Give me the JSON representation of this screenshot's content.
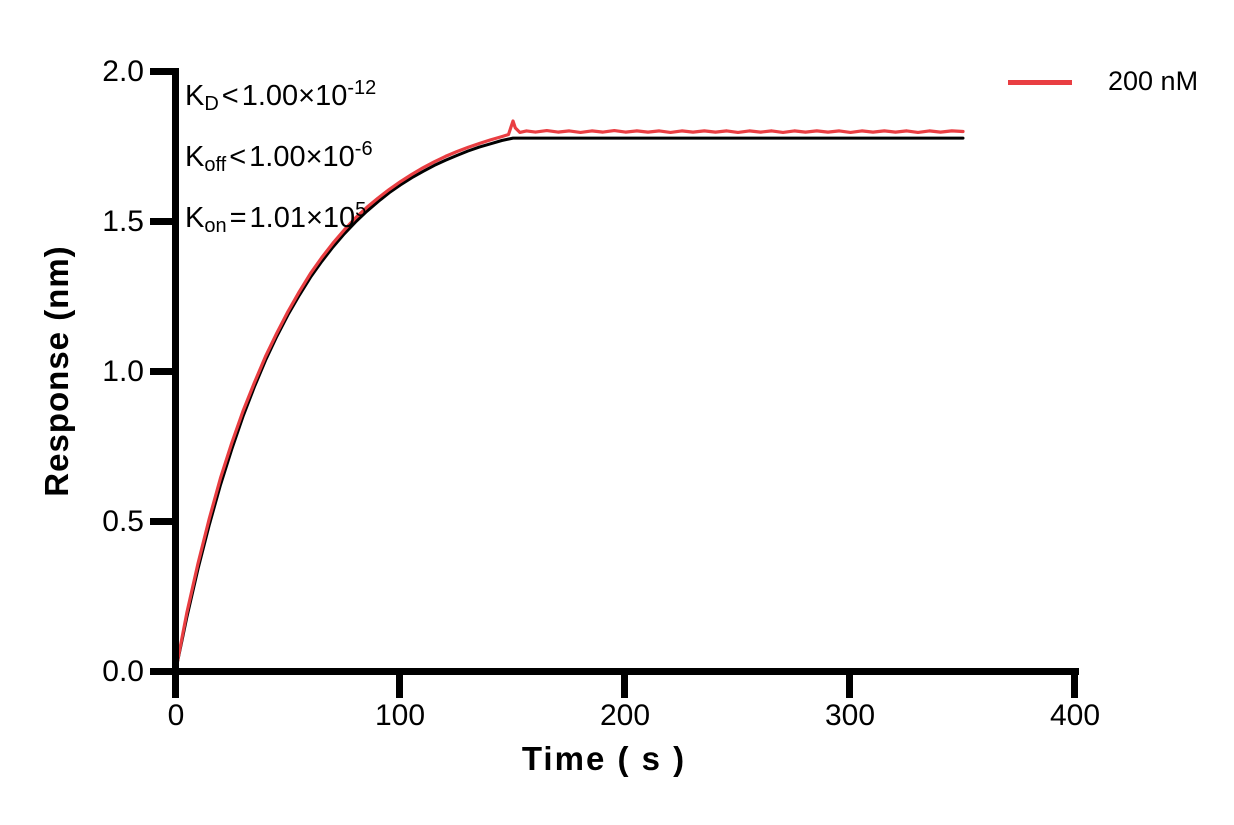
{
  "figure": {
    "background": "#FFFFFF"
  },
  "chart_data": {
    "type": "line",
    "title": "",
    "xlabel": "Time ( s )",
    "ylabel": "Response (nm)",
    "xlim": [
      0,
      400
    ],
    "ylim": [
      0.0,
      2.0
    ],
    "xticks": [
      0,
      100,
      200,
      300,
      400
    ],
    "yticks": [
      0.0,
      0.5,
      1.0,
      1.5,
      2.0
    ],
    "xtick_labels": [
      "0",
      "100",
      "200",
      "300",
      "400"
    ],
    "ytick_labels": [
      "0.0",
      "0.5",
      "1.0",
      "1.5",
      "2.0"
    ],
    "grid": false,
    "axis_color": "#000000",
    "legend_position": "top-right",
    "legend": [
      {
        "label": "200 nM",
        "color": "#E93E42"
      }
    ],
    "annotations": [
      {
        "base": "K",
        "sub": "D",
        "op": "<",
        "mantissa": "1.00×10",
        "sup": "-12"
      },
      {
        "base": "K",
        "sub": "off",
        "op": "<",
        "mantissa": "1.00×10",
        "sup": "-6"
      },
      {
        "base": "K",
        "sub": "on",
        "op": "=",
        "mantissa": "1.01×10",
        "sup": "5"
      }
    ],
    "series": [
      {
        "name": "fit",
        "color": "#000000",
        "stroke_width": 3,
        "in_legend": false,
        "points": [
          [
            0,
            0
          ],
          [
            5,
            0.18
          ],
          [
            10,
            0.342
          ],
          [
            15,
            0.489
          ],
          [
            20,
            0.622
          ],
          [
            25,
            0.741
          ],
          [
            30,
            0.85
          ],
          [
            35,
            0.948
          ],
          [
            40,
            1.037
          ],
          [
            45,
            1.117
          ],
          [
            50,
            1.189
          ],
          [
            55,
            1.254
          ],
          [
            60,
            1.314
          ],
          [
            65,
            1.367
          ],
          [
            70,
            1.415
          ],
          [
            75,
            1.459
          ],
          [
            80,
            1.498
          ],
          [
            85,
            1.534
          ],
          [
            90,
            1.566
          ],
          [
            95,
            1.596
          ],
          [
            100,
            1.622
          ],
          [
            105,
            1.646
          ],
          [
            110,
            1.667
          ],
          [
            115,
            1.687
          ],
          [
            120,
            1.704
          ],
          [
            125,
            1.72
          ],
          [
            130,
            1.735
          ],
          [
            135,
            1.748
          ],
          [
            140,
            1.759
          ],
          [
            145,
            1.77
          ],
          [
            150,
            1.778
          ],
          [
            350,
            1.778
          ]
        ]
      },
      {
        "name": "200 nM",
        "color": "#E93E42",
        "stroke_width": 3.2,
        "in_legend": true,
        "points": [
          [
            0,
            0
          ],
          [
            5,
            0.195
          ],
          [
            10,
            0.36
          ],
          [
            15,
            0.51
          ],
          [
            20,
            0.645
          ],
          [
            25,
            0.762
          ],
          [
            30,
            0.868
          ],
          [
            35,
            0.962
          ],
          [
            40,
            1.05
          ],
          [
            45,
            1.128
          ],
          [
            50,
            1.2
          ],
          [
            55,
            1.266
          ],
          [
            60,
            1.327
          ],
          [
            65,
            1.38
          ],
          [
            70,
            1.428
          ],
          [
            75,
            1.472
          ],
          [
            80,
            1.512
          ],
          [
            85,
            1.547
          ],
          [
            90,
            1.578
          ],
          [
            95,
            1.607
          ],
          [
            100,
            1.633
          ],
          [
            105,
            1.657
          ],
          [
            110,
            1.679
          ],
          [
            115,
            1.699
          ],
          [
            120,
            1.717
          ],
          [
            125,
            1.733
          ],
          [
            130,
            1.747
          ],
          [
            135,
            1.76
          ],
          [
            140,
            1.772
          ],
          [
            145,
            1.783
          ],
          [
            148,
            1.79
          ],
          [
            150,
            1.835
          ],
          [
            151,
            1.812
          ],
          [
            153,
            1.797
          ],
          [
            156,
            1.802
          ],
          [
            160,
            1.798
          ],
          [
            165,
            1.803
          ],
          [
            170,
            1.798
          ],
          [
            175,
            1.802
          ],
          [
            180,
            1.797
          ],
          [
            185,
            1.802
          ],
          [
            190,
            1.798
          ],
          [
            195,
            1.803
          ],
          [
            200,
            1.798
          ],
          [
            205,
            1.802
          ],
          [
            210,
            1.798
          ],
          [
            215,
            1.802
          ],
          [
            220,
            1.797
          ],
          [
            225,
            1.802
          ],
          [
            230,
            1.798
          ],
          [
            235,
            1.802
          ],
          [
            240,
            1.798
          ],
          [
            245,
            1.802
          ],
          [
            250,
            1.797
          ],
          [
            255,
            1.802
          ],
          [
            260,
            1.798
          ],
          [
            265,
            1.802
          ],
          [
            270,
            1.797
          ],
          [
            275,
            1.802
          ],
          [
            280,
            1.798
          ],
          [
            285,
            1.802
          ],
          [
            290,
            1.798
          ],
          [
            295,
            1.802
          ],
          [
            300,
            1.797
          ],
          [
            305,
            1.802
          ],
          [
            310,
            1.798
          ],
          [
            315,
            1.802
          ],
          [
            320,
            1.798
          ],
          [
            325,
            1.802
          ],
          [
            330,
            1.797
          ],
          [
            335,
            1.802
          ],
          [
            340,
            1.798
          ],
          [
            345,
            1.802
          ],
          [
            350,
            1.8
          ]
        ]
      }
    ]
  }
}
